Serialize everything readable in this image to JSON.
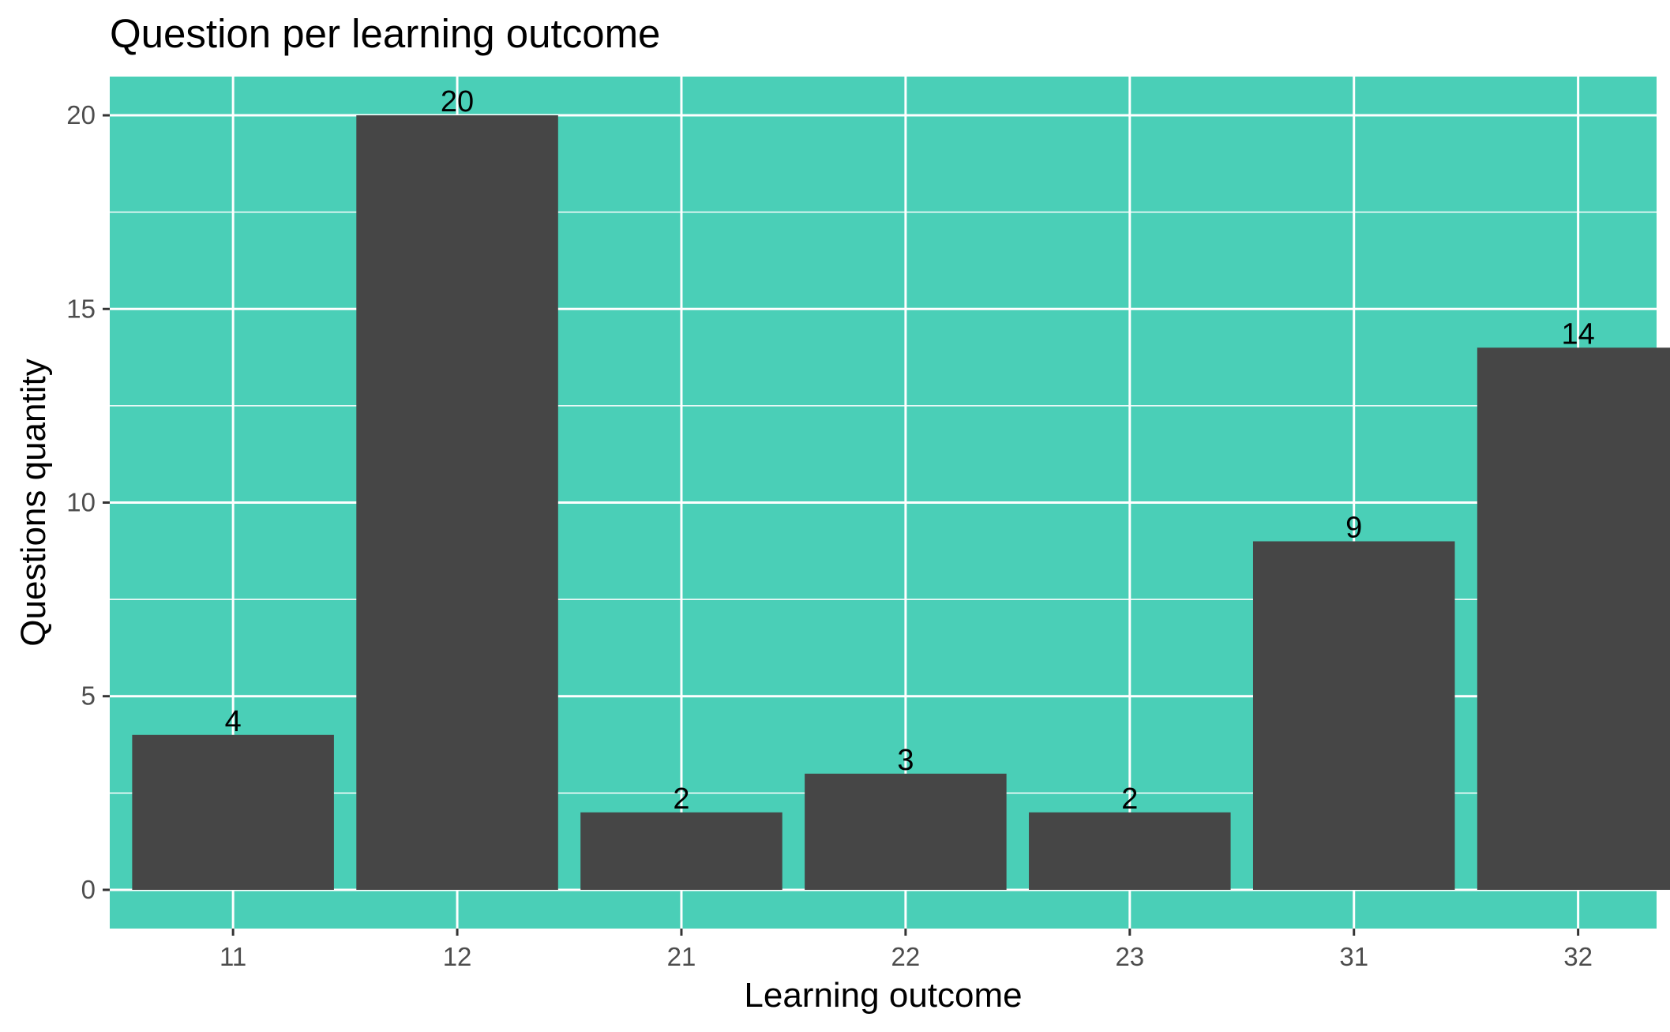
{
  "chart_data": {
    "type": "bar",
    "title": "Question per learning outcome",
    "xlabel": "Learning outcome",
    "ylabel": "Questions quantity",
    "categories": [
      "11",
      "12",
      "21",
      "22",
      "23",
      "31",
      "32"
    ],
    "values": [
      4,
      20,
      2,
      3,
      2,
      9,
      14
    ],
    "data_labels": [
      "4",
      "20",
      "2",
      "3",
      "2",
      "9",
      "14"
    ],
    "y_ticks": [
      0,
      5,
      10,
      15,
      20
    ],
    "ylim": [
      -1,
      21
    ],
    "grid": true,
    "legend": "none",
    "colors": {
      "panel_background": "#4ACFB7",
      "bar_fill": "#464646",
      "grid_line": "#FFFFFF",
      "tick_text": "#4D4D4D",
      "text": "#000000"
    }
  }
}
